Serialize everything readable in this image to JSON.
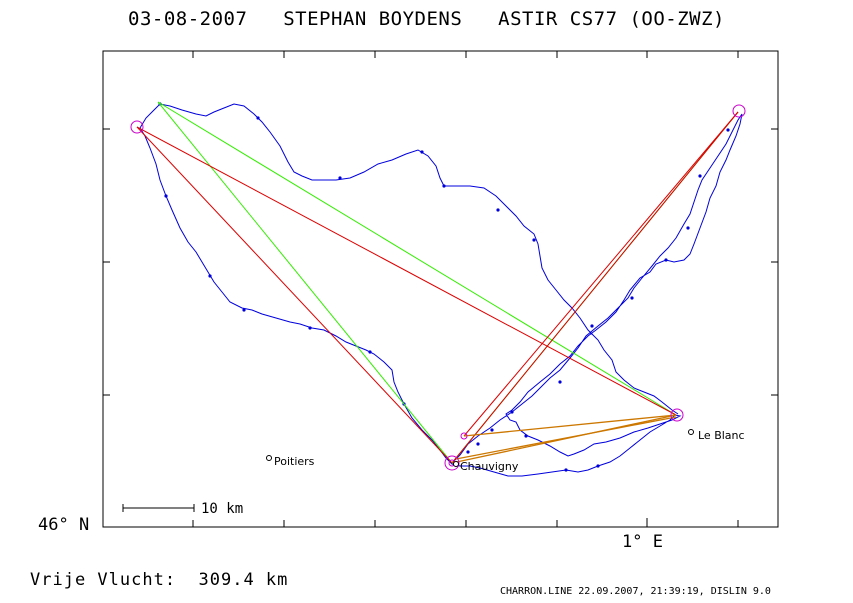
{
  "title": "03-08-2007   STEPHAN BOYDENS   ASTIR CS77 (OO-ZWZ)",
  "map": {
    "latitude_label": "46° N",
    "longitude_label": "1° E",
    "scale_label": "10 km",
    "towns": [
      {
        "name": "Poitiers"
      },
      {
        "name": "Chauvigny"
      },
      {
        "name": "Le Blanc"
      }
    ],
    "colors": {
      "track": "#0000dd",
      "task_red": "#dd0000",
      "task_green": "#33ee00",
      "task_orange": "#cc7700",
      "turnpoint": "#cc00cc",
      "frame": "#000000"
    }
  },
  "distance_label": "Vrije Vlucht:  309.4 km",
  "footer": "CHARRON.LINE 22.09.2007, 21:39:19, DISLIN 9.0"
}
